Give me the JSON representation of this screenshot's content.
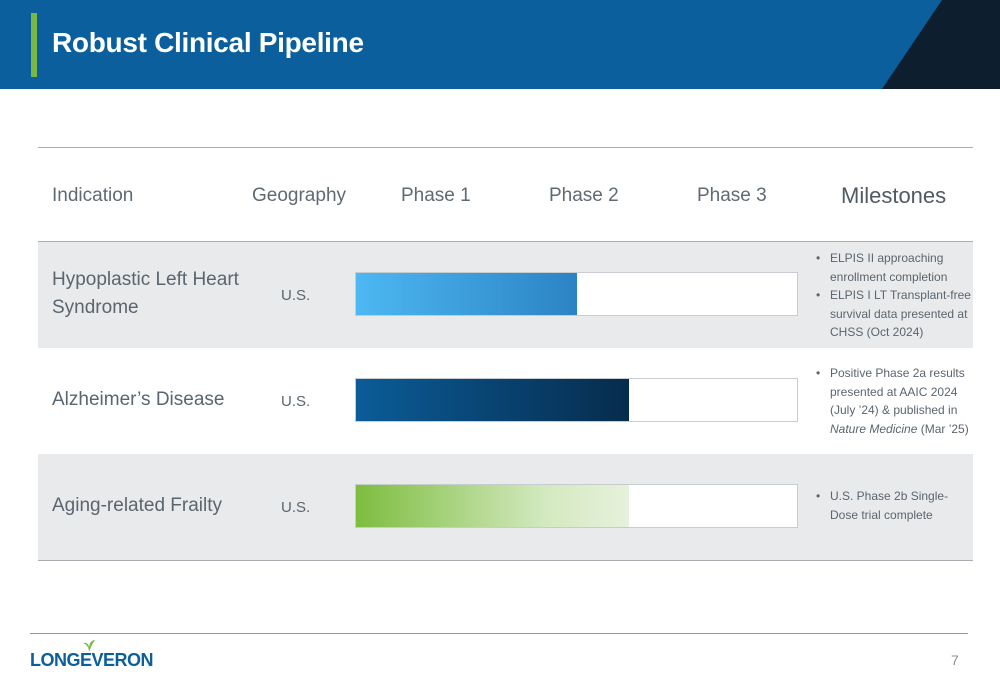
{
  "slide": {
    "title": "Robust Clinical Pipeline",
    "page_number": "7",
    "logo_text": "LONGEVERON"
  },
  "colors": {
    "header_blue": "#0a5f9c",
    "accent_green": "#79b842",
    "hlhs_bar": "#2c83c4",
    "alzheimers_bar": "#062c4d",
    "frailty_bar": "#7dbd3f"
  },
  "table": {
    "headers": {
      "indication": "Indication",
      "geography": "Geography",
      "phase1": "Phase 1",
      "phase2": "Phase 2",
      "phase3": "Phase 3",
      "milestones": "Milestones"
    },
    "rows": [
      {
        "indication_line1": "Hypoplastic Left Heart",
        "indication_line2": "Syndrome",
        "geography": "U.S.",
        "progress_fraction": 0.5,
        "milestones": [
          "ELPIS II approaching enrollment completion",
          "ELPIS I LT Transplant-free survival data presented at CHSS (Oct 2024)"
        ]
      },
      {
        "indication_line1": "Alzheimer’s Disease",
        "geography": "U.S.",
        "progress_fraction": 0.62,
        "milestones_parts": {
          "before": "Positive Phase 2a results presented at AAIC 2024 (July ’24) & published in ",
          "journal": "Nature Medicine",
          "after": " (Mar ’25)"
        }
      },
      {
        "indication_line1": "Aging-related Frailty",
        "geography": "U.S.",
        "progress_fraction": 0.62,
        "milestones": [
          "U.S. Phase 2b Single-Dose trial complete"
        ]
      }
    ]
  }
}
